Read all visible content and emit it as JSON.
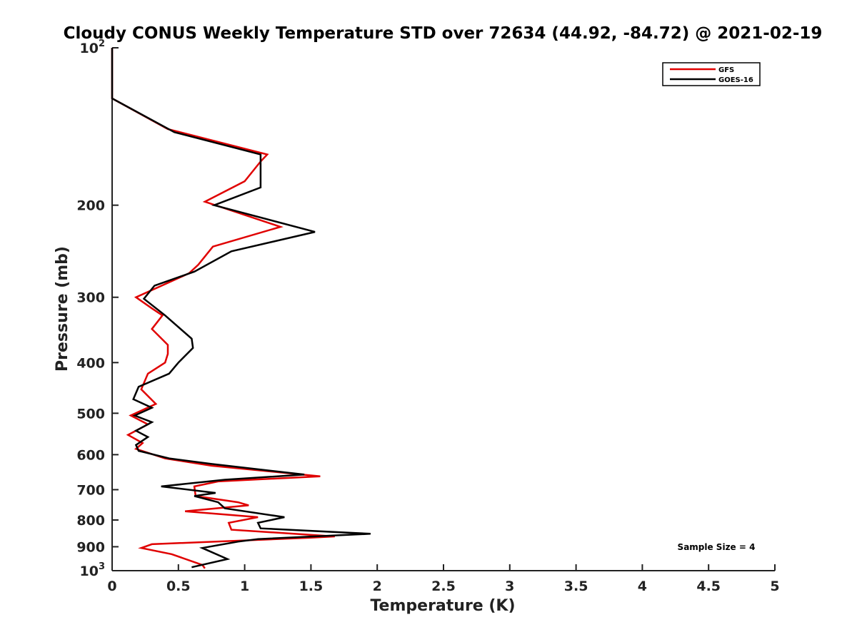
{
  "chart_data": {
    "type": "line",
    "title": "Cloudy CONUS Weekly Temperature STD over 72634 (44.92, -84.72) @ 2021-02-19",
    "xlabel": "Temperature (K)",
    "ylabel": "Pressure (mb)",
    "xlim": [
      0,
      5
    ],
    "ylim": [
      100,
      1000
    ],
    "y_scale": "log",
    "y_reversed": true,
    "grid": false,
    "legend_position": "top-right",
    "x_ticks": [
      0,
      0.5,
      1,
      1.5,
      2,
      2.5,
      3,
      3.5,
      4,
      4.5,
      5
    ],
    "x_tick_labels": [
      "0",
      "0.5",
      "1",
      "1.5",
      "2",
      "2.5",
      "3",
      "3.5",
      "4",
      "4.5",
      "5"
    ],
    "y_ticks": [
      100,
      200,
      300,
      400,
      500,
      600,
      700,
      800,
      900,
      1000
    ],
    "y_tick_labels": [
      {
        "base": "10",
        "exp": "2"
      },
      {
        "base": "200",
        "exp": ""
      },
      {
        "base": "300",
        "exp": ""
      },
      {
        "base": "400",
        "exp": ""
      },
      {
        "base": "500",
        "exp": ""
      },
      {
        "base": "600",
        "exp": ""
      },
      {
        "base": "700",
        "exp": ""
      },
      {
        "base": "800",
        "exp": ""
      },
      {
        "base": "900",
        "exp": ""
      },
      {
        "base": "10",
        "exp": "3"
      }
    ],
    "annotation": "Sample Size = 4",
    "series": [
      {
        "name": "GFS",
        "color": "#e00000",
        "points": [
          [
            0,
            100
          ],
          [
            0,
            125
          ],
          [
            0.42,
            143
          ],
          [
            1.17,
            160
          ],
          [
            1.12,
            165
          ],
          [
            1.0,
            180
          ],
          [
            0.7,
            197
          ],
          [
            1.27,
            220
          ],
          [
            0.76,
            240
          ],
          [
            0.65,
            260
          ],
          [
            0.58,
            270
          ],
          [
            0.18,
            300
          ],
          [
            0.3,
            315
          ],
          [
            0.38,
            325
          ],
          [
            0.3,
            345
          ],
          [
            0.42,
            370
          ],
          [
            0.42,
            385
          ],
          [
            0.4,
            400
          ],
          [
            0.27,
            420
          ],
          [
            0.22,
            450
          ],
          [
            0.33,
            480
          ],
          [
            0.14,
            505
          ],
          [
            0.27,
            525
          ],
          [
            0.12,
            550
          ],
          [
            0.23,
            570
          ],
          [
            0.18,
            585
          ],
          [
            0.4,
            610
          ],
          [
            0.75,
            630
          ],
          [
            1.57,
            660
          ],
          [
            0.8,
            675
          ],
          [
            0.62,
            690
          ],
          [
            0.63,
            720
          ],
          [
            0.95,
            740
          ],
          [
            1.03,
            750
          ],
          [
            0.55,
            770
          ],
          [
            1.1,
            790
          ],
          [
            0.88,
            810
          ],
          [
            0.9,
            835
          ],
          [
            1.68,
            860
          ],
          [
            1.5,
            865
          ],
          [
            0.3,
            890
          ],
          [
            0.22,
            905
          ],
          [
            0.45,
            930
          ],
          [
            0.68,
            975
          ],
          [
            0.7,
            990
          ]
        ]
      },
      {
        "name": "GOES-16",
        "color": "#000000",
        "points": [
          [
            0,
            100
          ],
          [
            0,
            125
          ],
          [
            0.47,
            145
          ],
          [
            1.12,
            160
          ],
          [
            1.12,
            185
          ],
          [
            0.77,
            200
          ],
          [
            1.53,
            225
          ],
          [
            0.9,
            245
          ],
          [
            0.62,
            268
          ],
          [
            0.32,
            285
          ],
          [
            0.24,
            302
          ],
          [
            0.4,
            325
          ],
          [
            0.6,
            360
          ],
          [
            0.61,
            375
          ],
          [
            0.5,
            400
          ],
          [
            0.43,
            420
          ],
          [
            0.2,
            445
          ],
          [
            0.16,
            470
          ],
          [
            0.3,
            488
          ],
          [
            0.17,
            505
          ],
          [
            0.3,
            520
          ],
          [
            0.18,
            540
          ],
          [
            0.27,
            555
          ],
          [
            0.18,
            575
          ],
          [
            0.2,
            590
          ],
          [
            0.43,
            610
          ],
          [
            0.75,
            625
          ],
          [
            1.45,
            655
          ],
          [
            0.85,
            670
          ],
          [
            0.37,
            690
          ],
          [
            0.78,
            710
          ],
          [
            0.62,
            720
          ],
          [
            0.8,
            740
          ],
          [
            0.85,
            760
          ],
          [
            1.3,
            790
          ],
          [
            1.1,
            810
          ],
          [
            1.12,
            830
          ],
          [
            1.95,
            850
          ],
          [
            1.1,
            870
          ],
          [
            0.95,
            880
          ],
          [
            0.68,
            905
          ],
          [
            0.87,
            950
          ],
          [
            0.6,
            985
          ]
        ]
      }
    ]
  }
}
